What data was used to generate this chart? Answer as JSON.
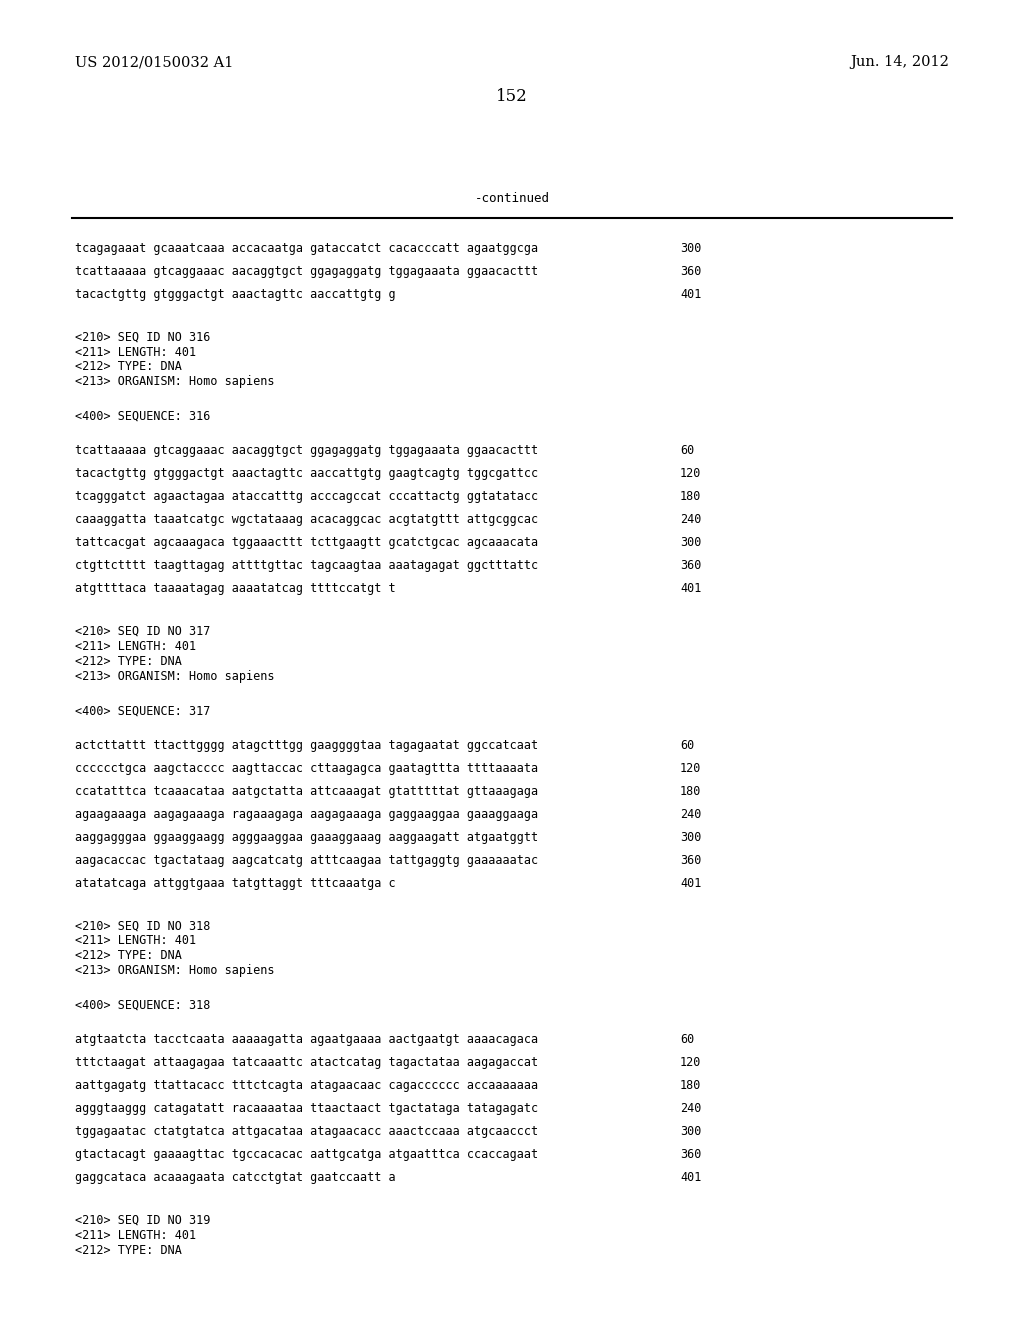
{
  "header_left": "US 2012/0150032 A1",
  "header_right": "Jun. 14, 2012",
  "page_number": "152",
  "continued_label": "-continued",
  "background_color": "#ffffff",
  "text_color": "#000000",
  "lines": [
    {
      "text": "tcagagaaat gcaaatcaaa accacaatga gataccatct cacacccatt agaatggcga",
      "num": "300"
    },
    {
      "text": "tcattaaaaa gtcaggaaac aacaggtgct ggagaggatg tggagaaata ggaacacttt",
      "num": "360"
    },
    {
      "text": "tacactgttg gtgggactgt aaactagttc aaccattgtg g",
      "num": "401"
    },
    {
      "text": "",
      "num": ""
    },
    {
      "text": "<210> SEQ ID NO 316",
      "num": ""
    },
    {
      "text": "<211> LENGTH: 401",
      "num": ""
    },
    {
      "text": "<212> TYPE: DNA",
      "num": ""
    },
    {
      "text": "<213> ORGANISM: Homo sapiens",
      "num": ""
    },
    {
      "text": "",
      "num": ""
    },
    {
      "text": "<400> SEQUENCE: 316",
      "num": ""
    },
    {
      "text": "",
      "num": ""
    },
    {
      "text": "tcattaaaaa gtcaggaaac aacaggtgct ggagaggatg tggagaaata ggaacacttt",
      "num": "60"
    },
    {
      "text": "tacactgttg gtgggactgt aaactagttc aaccattgtg gaagtcagtg tggcgattcc",
      "num": "120"
    },
    {
      "text": "tcagggatct agaactagaa ataccatttg acccagccat cccattactg ggtatatacc",
      "num": "180"
    },
    {
      "text": "caaaggatta taaatcatgc wgctataaag acacaggcac acgtatgttt attgcggcac",
      "num": "240"
    },
    {
      "text": "tattcacgat agcaaagaca tggaaacttt tcttgaagtt gcatctgcac agcaaacata",
      "num": "300"
    },
    {
      "text": "ctgttctttt taagttagag attttgttac tagcaagtaa aaatagagat ggctttattc",
      "num": "360"
    },
    {
      "text": "atgttttaca taaaatagag aaaatatcag ttttccatgt t",
      "num": "401"
    },
    {
      "text": "",
      "num": ""
    },
    {
      "text": "<210> SEQ ID NO 317",
      "num": ""
    },
    {
      "text": "<211> LENGTH: 401",
      "num": ""
    },
    {
      "text": "<212> TYPE: DNA",
      "num": ""
    },
    {
      "text": "<213> ORGANISM: Homo sapiens",
      "num": ""
    },
    {
      "text": "",
      "num": ""
    },
    {
      "text": "<400> SEQUENCE: 317",
      "num": ""
    },
    {
      "text": "",
      "num": ""
    },
    {
      "text": "actcttattt ttacttgggg atagctttgg gaaggggtaa tagagaatat ggccatcaat",
      "num": "60"
    },
    {
      "text": "cccccctgca aagctacccc aagttaccac cttaagagca gaatagttta ttttaaaata",
      "num": "120"
    },
    {
      "text": "ccatatttca tcaaacataa aatgctatta attcaaagat gtatttttat gttaaagaga",
      "num": "180"
    },
    {
      "text": "agaagaaaga aagagaaaga ragaaagaga aagagaaaga gaggaaggaa gaaaggaaga",
      "num": "240"
    },
    {
      "text": "aaggagggaa ggaaggaagg agggaaggaa gaaaggaaag aaggaagatt atgaatggtt",
      "num": "300"
    },
    {
      "text": "aagacaccac tgactataag aagcatcatg atttcaagaa tattgaggtg gaaaaaatac",
      "num": "360"
    },
    {
      "text": "atatatcaga attggtgaaa tatgttaggt tttcaaatga c",
      "num": "401"
    },
    {
      "text": "",
      "num": ""
    },
    {
      "text": "<210> SEQ ID NO 318",
      "num": ""
    },
    {
      "text": "<211> LENGTH: 401",
      "num": ""
    },
    {
      "text": "<212> TYPE: DNA",
      "num": ""
    },
    {
      "text": "<213> ORGANISM: Homo sapiens",
      "num": ""
    },
    {
      "text": "",
      "num": ""
    },
    {
      "text": "<400> SEQUENCE: 318",
      "num": ""
    },
    {
      "text": "",
      "num": ""
    },
    {
      "text": "atgtaatcta tacctcaata aaaaagatta agaatgaaaa aactgaatgt aaaacagaca",
      "num": "60"
    },
    {
      "text": "tttctaagat attaagagaa tatcaaattc atactcatag tagactataa aagagaccat",
      "num": "120"
    },
    {
      "text": "aattgagatg ttattacacc tttctcagta atagaacaac cagacccccc accaaaaaaa",
      "num": "180"
    },
    {
      "text": "agggtaaggg catagatatt racaaaataa ttaactaact tgactataga tatagagatc",
      "num": "240"
    },
    {
      "text": "tggagaatac ctatgtatca attgacataa atagaacacc aaactccaaa atgcaaccct",
      "num": "300"
    },
    {
      "text": "gtactacagt gaaaagttac tgccacacac aattgcatga atgaatttca ccaccagaat",
      "num": "360"
    },
    {
      "text": "gaggcataca acaaagaata catcctgtat gaatccaatt a",
      "num": "401"
    },
    {
      "text": "",
      "num": ""
    },
    {
      "text": "<210> SEQ ID NO 319",
      "num": ""
    },
    {
      "text": "<211> LENGTH: 401",
      "num": ""
    },
    {
      "text": "<212> TYPE: DNA",
      "num": ""
    }
  ]
}
